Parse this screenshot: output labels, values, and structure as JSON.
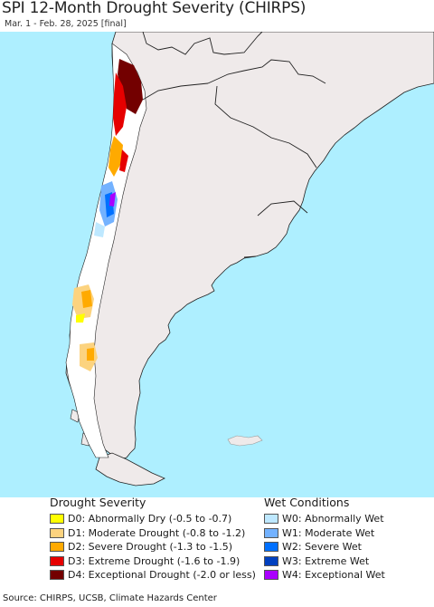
{
  "title": "SPI 12-Month Drought Severity (CHIRPS)",
  "subtitle": "Mar. 1 - Feb. 28, 2025 [final]",
  "map": {
    "ocean_color": "#aeefff",
    "land_color": "#efeaea",
    "border_color": "#222222",
    "no_data_color": "#ffffff"
  },
  "legend": {
    "drought": {
      "heading": "Drought Severity",
      "items": [
        {
          "label": "D0: Abnormally Dry (-0.5 to -0.7)",
          "color": "#ffff00"
        },
        {
          "label": "D1: Moderate Drought (-0.8 to -1.2)",
          "color": "#fcd37f"
        },
        {
          "label": "D2: Severe Drought (-1.3 to -1.5)",
          "color": "#ffaa00"
        },
        {
          "label": "D3: Extreme Drought (-1.6 to -1.9)",
          "color": "#e60000"
        },
        {
          "label": "D4: Exceptional Drought (-2.0 or less)",
          "color": "#730000"
        }
      ]
    },
    "wet": {
      "heading": "Wet Conditions",
      "items": [
        {
          "label": "W0: Abnormally Wet",
          "color": "#bee8ff"
        },
        {
          "label": "W1: Moderate Wet",
          "color": "#73b2ff"
        },
        {
          "label": "W2: Severe Wet",
          "color": "#0070ff"
        },
        {
          "label": "W3: Extreme Wet",
          "color": "#0040bf"
        },
        {
          "label": "W4: Exceptional Wet",
          "color": "#aa00ff"
        }
      ]
    }
  },
  "source": "Source: CHIRPS, UCSB, Climate Hazards Center"
}
